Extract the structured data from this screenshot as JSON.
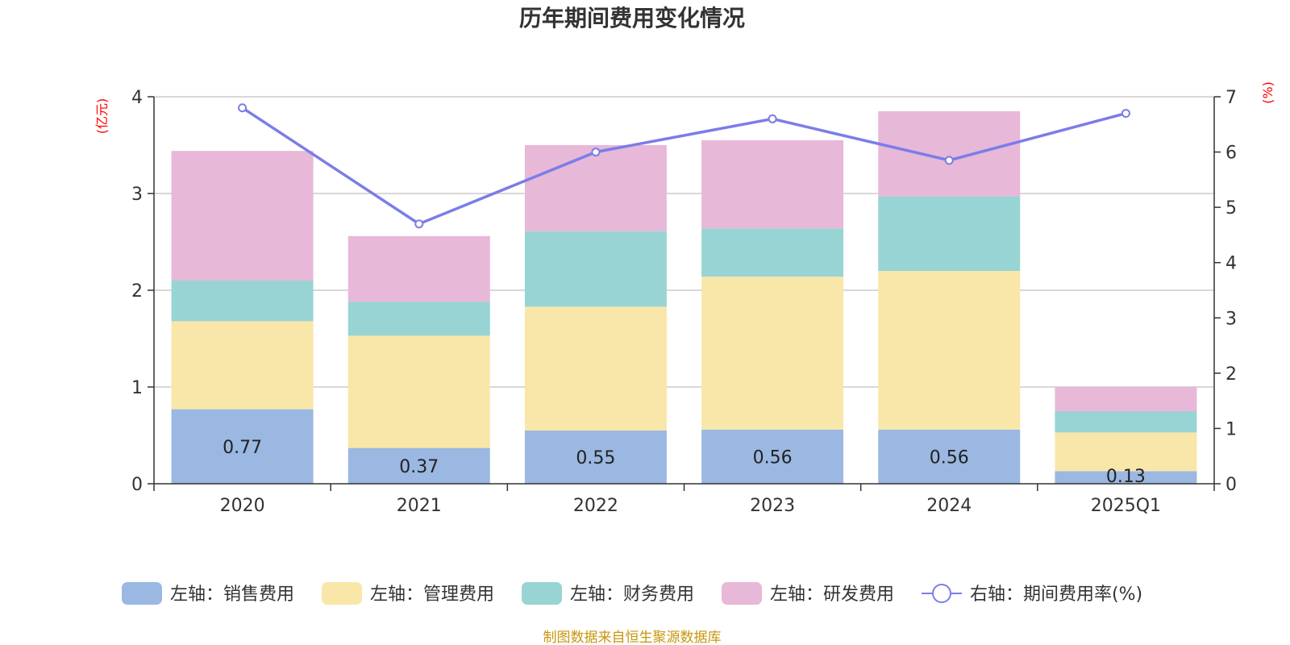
{
  "chart_data": {
    "type": "bar",
    "stacked": true,
    "title": "历年期间费用变化情况",
    "categories": [
      "2020",
      "2021",
      "2022",
      "2023",
      "2024",
      "2025Q1"
    ],
    "y_left": {
      "unit": "(亿元)",
      "ylim": [
        0,
        4
      ],
      "ticks": [
        "0",
        "1",
        "2",
        "3",
        "4"
      ]
    },
    "y_right": {
      "unit": "(%)",
      "ylim": [
        0,
        7
      ],
      "ticks": [
        "0",
        "1",
        "2",
        "3",
        "4",
        "5",
        "6",
        "7"
      ]
    },
    "series": [
      {
        "name": "左轴：销售费用",
        "axis": "left",
        "color": "#9bb8e2",
        "values": [
          0.77,
          0.37,
          0.55,
          0.56,
          0.56,
          0.13
        ],
        "labels": [
          "0.77",
          "0.37",
          "0.55",
          "0.56",
          "0.56",
          "0.13"
        ]
      },
      {
        "name": "左轴：管理费用",
        "axis": "left",
        "color": "#f8e7a8",
        "values": [
          0.91,
          1.16,
          1.28,
          1.58,
          1.64,
          0.4
        ]
      },
      {
        "name": "左轴：财务费用",
        "axis": "left",
        "color": "#98d4d4",
        "values": [
          0.42,
          0.35,
          0.78,
          0.5,
          0.77,
          0.22
        ]
      },
      {
        "name": "左轴：研发费用",
        "axis": "left",
        "color": "#e7b8d8",
        "values": [
          1.34,
          0.68,
          0.89,
          0.91,
          0.88,
          0.25
        ]
      },
      {
        "name": "右轴：期间费用率(%)",
        "axis": "right",
        "type": "line",
        "color": "#7b7de8",
        "values": [
          6.8,
          4.7,
          6.0,
          6.6,
          5.85,
          6.7
        ]
      }
    ],
    "grid": true,
    "legend_position": "bottom"
  },
  "source_text": "制图数据来自恒生聚源数据库"
}
